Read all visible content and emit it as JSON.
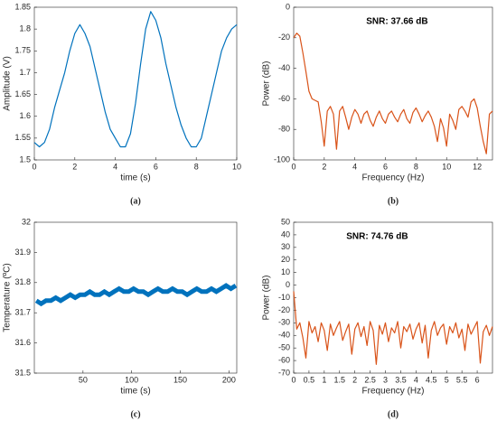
{
  "chart_data": [
    {
      "type": "line",
      "panel_label": "(a)",
      "xlabel": "time (s)",
      "ylabel": "Amplitude (V)",
      "color": "#0072bd",
      "xlim": [
        0,
        10
      ],
      "xticks": [
        0,
        2,
        4,
        6,
        8,
        10
      ],
      "ylim": [
        1.5,
        1.85
      ],
      "yticks": [
        1.5,
        1.55,
        1.6,
        1.65,
        1.7,
        1.75,
        1.8,
        1.85
      ],
      "x": [
        0,
        0.25,
        0.5,
        0.75,
        1,
        1.25,
        1.5,
        1.75,
        2,
        2.25,
        2.5,
        2.75,
        3,
        3.25,
        3.5,
        3.75,
        4,
        4.25,
        4.5,
        4.75,
        5,
        5.25,
        5.5,
        5.75,
        6,
        6.25,
        6.5,
        6.75,
        7,
        7.25,
        7.5,
        7.75,
        8,
        8.25,
        8.5,
        8.75,
        9,
        9.25,
        9.5,
        9.75,
        10
      ],
      "values": [
        1.54,
        1.53,
        1.54,
        1.57,
        1.62,
        1.66,
        1.7,
        1.75,
        1.79,
        1.81,
        1.79,
        1.76,
        1.71,
        1.66,
        1.61,
        1.57,
        1.55,
        1.53,
        1.53,
        1.56,
        1.63,
        1.72,
        1.8,
        1.84,
        1.82,
        1.78,
        1.72,
        1.67,
        1.62,
        1.58,
        1.55,
        1.53,
        1.53,
        1.55,
        1.6,
        1.65,
        1.7,
        1.75,
        1.78,
        1.8,
        1.81
      ]
    },
    {
      "type": "line",
      "panel_label": "(b)",
      "xlabel": "Frequency (Hz)",
      "ylabel": "Power (dB)",
      "annotation": "SNR:  37.66 dB",
      "color": "#d95319",
      "xlim": [
        0,
        13
      ],
      "xticks": [
        0,
        2,
        4,
        6,
        8,
        10,
        12
      ],
      "ylim": [
        -100,
        0
      ],
      "yticks": [
        -100,
        -80,
        -60,
        -40,
        -20,
        0
      ],
      "x": [
        0,
        0.2,
        0.4,
        0.6,
        0.8,
        1,
        1.2,
        1.4,
        1.6,
        1.8,
        2,
        2.2,
        2.4,
        2.6,
        2.8,
        3,
        3.2,
        3.4,
        3.6,
        3.8,
        4,
        4.2,
        4.4,
        4.6,
        4.8,
        5,
        5.2,
        5.4,
        5.6,
        5.8,
        6,
        6.2,
        6.4,
        6.6,
        6.8,
        7,
        7.2,
        7.4,
        7.6,
        7.8,
        8,
        8.2,
        8.4,
        8.6,
        8.8,
        9,
        9.2,
        9.4,
        9.6,
        9.8,
        10,
        10.2,
        10.4,
        10.6,
        10.8,
        11,
        11.2,
        11.4,
        11.6,
        11.8,
        12,
        12.2,
        12.4,
        12.6,
        12.8,
        13
      ],
      "values": [
        -20,
        -17,
        -19,
        -30,
        -42,
        -55,
        -60,
        -61,
        -62,
        -75,
        -91,
        -68,
        -65,
        -70,
        -93,
        -68,
        -65,
        -72,
        -80,
        -72,
        -67,
        -70,
        -76,
        -70,
        -68,
        -74,
        -78,
        -72,
        -68,
        -73,
        -76,
        -70,
        -68,
        -72,
        -75,
        -70,
        -67,
        -73,
        -76,
        -69,
        -66,
        -70,
        -75,
        -71,
        -68,
        -72,
        -78,
        -88,
        -73,
        -79,
        -91,
        -70,
        -74,
        -80,
        -67,
        -65,
        -68,
        -72,
        -62,
        -60,
        -66,
        -78,
        -88,
        -96,
        -70,
        -68
      ]
    },
    {
      "type": "line",
      "panel_label": "(c)",
      "xlabel": "time (s)",
      "ylabel": "Temperature (ºC)",
      "color": "#0072bd",
      "xlim": [
        0,
        208
      ],
      "xticks": [
        50,
        100,
        150,
        200
      ],
      "ylim": [
        31.5,
        32
      ],
      "yticks": [
        31.5,
        31.6,
        31.7,
        31.8,
        31.9,
        32
      ],
      "x": [
        2,
        7,
        12,
        17,
        22,
        27,
        32,
        37,
        42,
        47,
        52,
        57,
        62,
        67,
        72,
        77,
        82,
        87,
        92,
        97,
        102,
        107,
        112,
        117,
        122,
        127,
        132,
        137,
        142,
        147,
        152,
        157,
        162,
        167,
        172,
        177,
        182,
        187,
        192,
        197,
        202,
        207
      ],
      "values": [
        31.74,
        31.73,
        31.74,
        31.74,
        31.75,
        31.74,
        31.75,
        31.76,
        31.75,
        31.76,
        31.76,
        31.77,
        31.76,
        31.76,
        31.77,
        31.76,
        31.77,
        31.78,
        31.77,
        31.77,
        31.78,
        31.77,
        31.77,
        31.76,
        31.77,
        31.78,
        31.77,
        31.77,
        31.78,
        31.77,
        31.77,
        31.76,
        31.77,
        31.78,
        31.77,
        31.77,
        31.78,
        31.77,
        31.78,
        31.79,
        31.78,
        31.79
      ]
    },
    {
      "type": "line",
      "panel_label": "(d)",
      "xlabel": "Frequency (Hz)",
      "ylabel": "Power (dB)",
      "annotation": "SNR: 74.76 dB",
      "color": "#d95319",
      "xlim": [
        0,
        6.5
      ],
      "xticks": [
        0,
        0.5,
        1,
        1.5,
        2,
        2.5,
        3,
        3.5,
        4,
        4.5,
        5,
        5.5,
        6
      ],
      "ylim": [
        -70,
        50
      ],
      "yticks": [
        -70,
        -60,
        -50,
        -40,
        -30,
        -20,
        -10,
        0,
        10,
        20,
        30,
        40,
        50
      ],
      "x": [
        0,
        0.1,
        0.2,
        0.3,
        0.4,
        0.5,
        0.6,
        0.7,
        0.8,
        0.9,
        1,
        1.1,
        1.2,
        1.3,
        1.4,
        1.5,
        1.6,
        1.7,
        1.8,
        1.9,
        2,
        2.1,
        2.2,
        2.3,
        2.4,
        2.5,
        2.6,
        2.7,
        2.8,
        2.9,
        3,
        3.1,
        3.2,
        3.3,
        3.4,
        3.5,
        3.6,
        3.7,
        3.8,
        3.9,
        4,
        4.1,
        4.2,
        4.3,
        4.4,
        4.5,
        4.6,
        4.7,
        4.8,
        4.9,
        5,
        5.1,
        5.2,
        5.3,
        5.4,
        5.5,
        5.6,
        5.7,
        5.8,
        5.9,
        6,
        6.1,
        6.2,
        6.3,
        6.4,
        6.5
      ],
      "values": [
        -5,
        -35,
        -30,
        -42,
        -58,
        -29,
        -38,
        -33,
        -45,
        -30,
        -36,
        -52,
        -31,
        -40,
        -34,
        -29,
        -44,
        -37,
        -31,
        -55,
        -35,
        -30,
        -41,
        -33,
        -48,
        -29,
        -36,
        -63,
        -32,
        -39,
        -30,
        -45,
        -34,
        -38,
        -29,
        -50,
        -33,
        -37,
        -31,
        -43,
        -35,
        -30,
        -46,
        -32,
        -58,
        -36,
        -29,
        -40,
        -34,
        -31,
        -47,
        -33,
        -38,
        -30,
        -42,
        -35,
        -52,
        -31,
        -39,
        -34,
        -29,
        -62,
        -37,
        -32,
        -40,
        -33
      ]
    }
  ]
}
